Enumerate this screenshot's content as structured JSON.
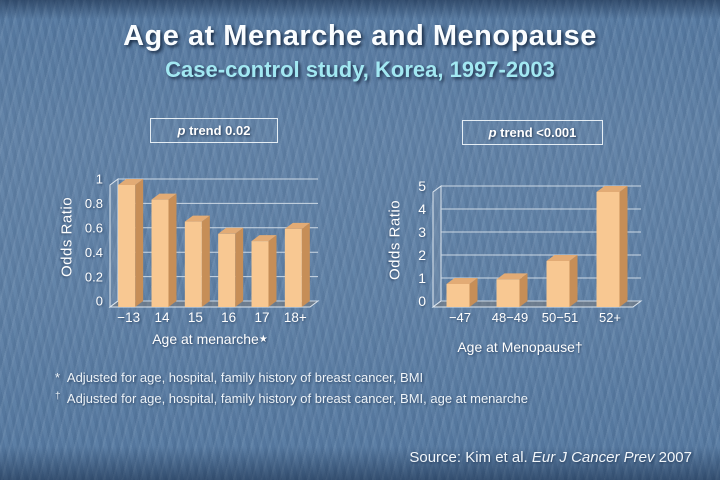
{
  "slide": {
    "title": "Age at Menarche and Menopause",
    "subtitle": "Case-control study, Korea, 1997-2003",
    "footnotes": [
      {
        "marker": "*",
        "text": "Adjusted for age, hospital, family history of breast cancer, BMI"
      },
      {
        "marker": "†",
        "text": "Adjusted for age, hospital, family history of breast cancer, BMI, age at menarche"
      }
    ],
    "source": {
      "prefix": "Source: Kim et al. ",
      "journal": "Eur J Cancer Prev",
      "suffix": " 2007"
    }
  },
  "chart_data": [
    {
      "type": "bar",
      "categories": [
        "−13",
        "14",
        "15",
        "16",
        "17",
        "18+"
      ],
      "values": [
        1.0,
        0.88,
        0.7,
        0.6,
        0.54,
        0.64
      ],
      "xlabel": "Age at menarche",
      "xlabel_marker": "★",
      "ylabel": "Odds Ratio",
      "ylim": [
        0,
        1
      ],
      "yticks": [
        0,
        0.2,
        0.4,
        0.6,
        0.8,
        1
      ],
      "ytick_labels": [
        "0",
        "0.2",
        "0.4",
        "0.6",
        "0.8",
        "1"
      ],
      "grid": true,
      "legend": false,
      "style": "3d-bar",
      "p_trend_label": {
        "p": "p",
        "text": " trend 0.02"
      },
      "bar_front_color": "#F8C892",
      "bar_side_color": "#C68E57",
      "bar_top_color": "#E2AB75"
    },
    {
      "type": "bar",
      "categories": [
        "−47",
        "48−49",
        "50−51",
        "52+"
      ],
      "values": [
        1.0,
        1.2,
        2.0,
        5.0
      ],
      "xlabel": "Age at Menopause",
      "xlabel_marker": "†",
      "ylabel": "Odds Ratio",
      "ylim": [
        0,
        5
      ],
      "yticks": [
        0,
        1,
        2,
        3,
        4,
        5
      ],
      "ytick_labels": [
        "0",
        "1",
        "2",
        "3",
        "4",
        "5"
      ],
      "grid": true,
      "legend": false,
      "style": "3d-bar",
      "p_trend_label": {
        "p": "p",
        "text": " trend <0.001"
      },
      "bar_front_color": "#F8C892",
      "bar_side_color": "#C68E57",
      "bar_top_color": "#E2AB75"
    }
  ]
}
